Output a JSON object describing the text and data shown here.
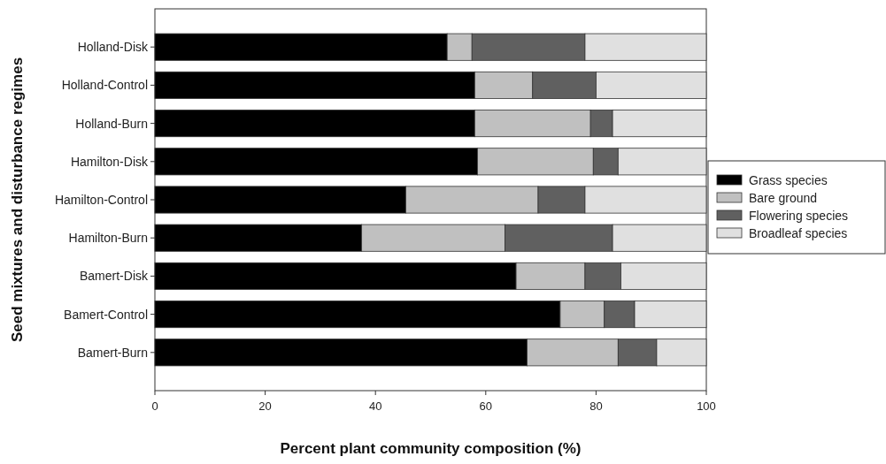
{
  "chart_data": {
    "type": "bar",
    "orientation": "horizontal",
    "stacked": true,
    "xlabel": "Percent plant community composition (%)",
    "ylabel": "Seed mixtures and disturbance regimes",
    "categories": [
      "Holland-Disk",
      "Holland-Control",
      "Holland-Burn",
      "Hamilton-Disk",
      "Hamilton-Control",
      "Hamilton-Burn",
      "Bamert-Disk",
      "Bamert-Control",
      "Bamert-Burn"
    ],
    "series": [
      {
        "name": "Grass species",
        "color": "#000000",
        "values": [
          53,
          58,
          58,
          58.5,
          45.5,
          37.5,
          65.5,
          73.5,
          67.5
        ]
      },
      {
        "name": "Bare ground",
        "color": "#c0c0c0",
        "values": [
          4.5,
          10.5,
          21,
          21,
          24,
          26,
          12.5,
          8,
          16.5
        ]
      },
      {
        "name": "Flowering species",
        "color": "#606060",
        "values": [
          20.5,
          11.5,
          4,
          4.5,
          8.5,
          19.5,
          6.5,
          5.5,
          7
        ]
      },
      {
        "name": "Broadleaf species",
        "color": "#e0e0e0",
        "values": [
          22,
          20,
          17,
          16,
          22,
          17,
          15.5,
          13,
          9
        ]
      }
    ],
    "xlim": [
      0,
      100
    ],
    "xticks": [
      0,
      20,
      40,
      60,
      80,
      100
    ],
    "grid": false,
    "legend": "right"
  }
}
